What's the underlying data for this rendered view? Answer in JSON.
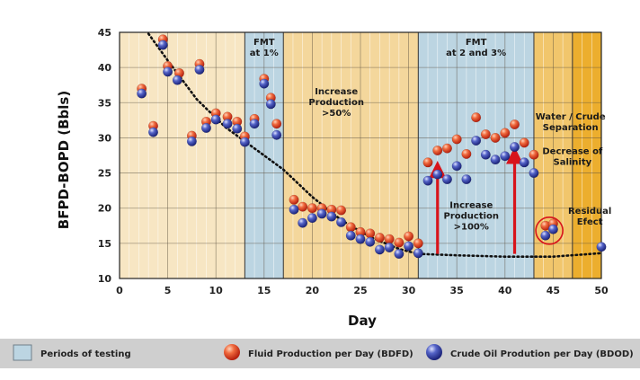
{
  "chart_data": {
    "type": "scatter",
    "xlabel": "Day",
    "ylabel": "BFPD-BOPD (Bbls)",
    "xlim": [
      0,
      50
    ],
    "ylim": [
      10,
      45
    ],
    "x_ticks": [
      0,
      5,
      10,
      15,
      20,
      25,
      30,
      35,
      40,
      45,
      50
    ],
    "y_ticks": [
      10,
      15,
      20,
      25,
      30,
      35,
      40,
      45
    ],
    "vertical_grid_step": 1,
    "horizontal_grid": true,
    "colors": {
      "pale_band": "#f7e6c3",
      "light_band": "#f4d79c",
      "mid_band": "#f1c66c",
      "dark_band": "#ecae2e",
      "testing_band": "#bcd5e2",
      "fluid": "#e8452a",
      "crude": "#3a46b0",
      "arrow": "#d8141b"
    },
    "regions": [
      {
        "type": "pale",
        "x_start": 0,
        "x_end": 13
      },
      {
        "type": "testing",
        "x_start": 13,
        "x_end": 17
      },
      {
        "type": "light",
        "x_start": 17,
        "x_end": 31
      },
      {
        "type": "testing",
        "x_start": 31,
        "x_end": 43
      },
      {
        "type": "mid",
        "x_start": 43,
        "x_end": 47
      },
      {
        "type": "dark",
        "x_start": 47,
        "x_end": 50
      }
    ],
    "annotations": [
      {
        "lines": [
          "FMT",
          "at 1%"
        ],
        "x": 15,
        "y": 43.2
      },
      {
        "lines": [
          "Increase",
          "Production",
          ">50%"
        ],
        "x": 22.5,
        "y": 36.2
      },
      {
        "lines": [
          "FMT",
          "at 2 and 3%"
        ],
        "x": 37,
        "y": 43.2
      },
      {
        "lines": [
          "Increase",
          "Production",
          ">100%"
        ],
        "x": 36.5,
        "y": 20.0
      },
      {
        "lines": [
          "Water / Crude",
          "Separation"
        ],
        "x": 46.8,
        "y": 32.6
      },
      {
        "lines": [
          "Decrease of",
          "Salinity"
        ],
        "x": 47.0,
        "y": 27.7
      },
      {
        "lines": [
          "Residual",
          "Efect"
        ],
        "x": 48.8,
        "y": 19.2
      }
    ],
    "arrows": [
      {
        "x": 33,
        "y_from": 13.5,
        "y_to": 25.5
      },
      {
        "x": 41,
        "y_from": 13.5,
        "y_to": 27.5
      }
    ],
    "highlight_circle": {
      "x": 44.6,
      "y": 16.8
    },
    "trend_line": [
      [
        3,
        44.8
      ],
      [
        5,
        41
      ],
      [
        8,
        35.5
      ],
      [
        11,
        31.5
      ],
      [
        14,
        28.5
      ],
      [
        17,
        25.5
      ],
      [
        20,
        21.6
      ],
      [
        23,
        18.3
      ],
      [
        26,
        15.9
      ],
      [
        29,
        14.2
      ],
      [
        31,
        13.5
      ],
      [
        35,
        13.3
      ],
      [
        40,
        13.1
      ],
      [
        45,
        13.1
      ],
      [
        50,
        13.6
      ]
    ],
    "series": [
      {
        "name": "Fluid Production per Day (BDFD)",
        "points": [
          [
            2.3,
            37
          ],
          [
            3.5,
            31.7
          ],
          [
            4.5,
            44
          ],
          [
            5,
            40.2
          ],
          [
            6.2,
            39.2
          ],
          [
            7.5,
            30.3
          ],
          [
            8.3,
            40.5
          ],
          [
            9,
            32.3
          ],
          [
            10,
            33.5
          ],
          [
            11.2,
            33
          ],
          [
            12.2,
            32.3
          ],
          [
            13,
            30.2
          ],
          [
            14,
            32.7
          ],
          [
            15,
            38.4
          ],
          [
            15.7,
            35.7
          ],
          [
            16.3,
            32
          ],
          [
            18.1,
            21.2
          ],
          [
            19,
            20.2
          ],
          [
            20,
            20
          ],
          [
            21,
            20
          ],
          [
            22,
            19.8
          ],
          [
            23,
            19.7
          ],
          [
            24,
            17.3
          ],
          [
            25,
            16.6
          ],
          [
            26,
            16.4
          ],
          [
            27,
            15.8
          ],
          [
            28,
            15.6
          ],
          [
            29,
            15.1
          ],
          [
            30,
            16
          ],
          [
            31,
            15
          ],
          [
            32,
            26.5
          ],
          [
            33,
            28.2
          ],
          [
            34,
            28.5
          ],
          [
            35,
            29.8
          ],
          [
            36,
            27.7
          ],
          [
            37,
            32.9
          ],
          [
            38,
            30.5
          ],
          [
            39,
            30
          ],
          [
            40,
            30.7
          ],
          [
            41,
            31.9
          ],
          [
            42,
            29.3
          ],
          [
            43,
            27.6
          ],
          [
            44.2,
            17.5
          ],
          [
            45,
            17.8
          ]
        ]
      },
      {
        "name": "Crude Oil Prodution per Day (BDOD)",
        "points": [
          [
            2.3,
            36.3
          ],
          [
            3.5,
            30.8
          ],
          [
            4.5,
            43.2
          ],
          [
            5,
            39.4
          ],
          [
            6,
            38.2
          ],
          [
            7.5,
            29.5
          ],
          [
            8.3,
            39.7
          ],
          [
            9,
            31.4
          ],
          [
            10,
            32.6
          ],
          [
            11.2,
            32
          ],
          [
            12.2,
            31.3
          ],
          [
            13,
            29.4
          ],
          [
            14,
            32
          ],
          [
            15,
            37.7
          ],
          [
            15.7,
            34.8
          ],
          [
            16.3,
            30.4
          ],
          [
            18.1,
            19.8
          ],
          [
            19,
            17.9
          ],
          [
            20,
            18.6
          ],
          [
            21,
            19.2
          ],
          [
            22,
            18.8
          ],
          [
            23,
            18
          ],
          [
            24,
            16.1
          ],
          [
            25,
            15.6
          ],
          [
            26,
            15.2
          ],
          [
            27,
            14.1
          ],
          [
            28,
            14.4
          ],
          [
            29,
            13.5
          ],
          [
            30,
            14.6
          ],
          [
            31,
            13.6
          ],
          [
            32,
            23.9
          ],
          [
            33,
            24.8
          ],
          [
            34,
            24.1
          ],
          [
            35,
            26
          ],
          [
            36,
            24.1
          ],
          [
            37,
            29.6
          ],
          [
            38,
            27.6
          ],
          [
            39,
            26.9
          ],
          [
            40,
            27.4
          ],
          [
            41,
            28.7
          ],
          [
            42,
            26.5
          ],
          [
            43,
            25
          ],
          [
            44.2,
            16.1
          ],
          [
            45,
            17
          ],
          [
            50,
            14.5
          ]
        ]
      }
    ]
  },
  "legend": {
    "items": [
      {
        "label": "Periods of testing"
      },
      {
        "label": "Fluid Production per Day (BDFD)"
      },
      {
        "label": "Crude Oil Prodution per Day (BDOD)"
      }
    ]
  }
}
